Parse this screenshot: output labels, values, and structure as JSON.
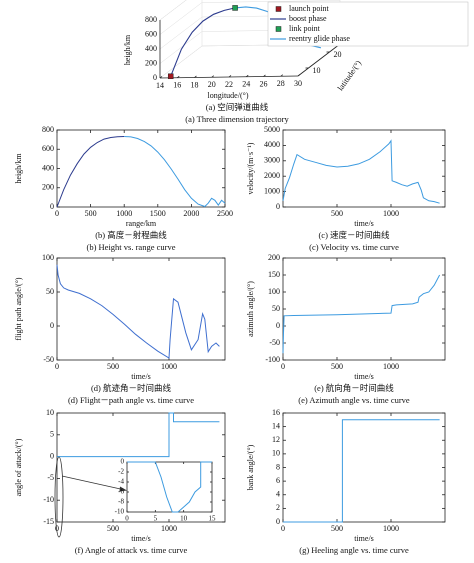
{
  "chart_data": [
    {
      "type": "line3d",
      "captions": [
        "(a) 空间弹道曲线",
        "(a) Three dimension trajectory"
      ],
      "xlabel": "longitude/(°)",
      "ylabel": "latitude/(°)",
      "zlabel": "heigh/km",
      "xlim": [
        14,
        30
      ],
      "xticks": [
        14,
        16,
        18,
        20,
        22,
        24,
        26,
        28,
        30
      ],
      "ylim": [
        5,
        25
      ],
      "yticks": [
        10,
        20
      ],
      "zlim": [
        0,
        800
      ],
      "zticks": [
        0,
        200,
        400,
        600,
        800
      ],
      "series": [
        {
          "name": "boost phase",
          "color": "#2c3b8e",
          "x": [
            15,
            16,
            17,
            18,
            19,
            20,
            21
          ],
          "y": [
            6,
            7,
            8,
            9,
            10,
            11,
            12
          ],
          "values": [
            0,
            350,
            560,
            690,
            760,
            790,
            800
          ]
        },
        {
          "name": "reentry glide phase",
          "color": "#3d9be0",
          "x": [
            21,
            22,
            23,
            24,
            25,
            26,
            27,
            28,
            29
          ],
          "y": [
            12,
            13,
            14,
            15,
            16,
            17,
            18,
            19,
            20
          ],
          "values": [
            800,
            790,
            750,
            680,
            580,
            450,
            300,
            120,
            60
          ]
        }
      ],
      "markers": [
        {
          "name": "launch point",
          "color": "#a01820",
          "x": 15,
          "y": 6,
          "value": 0
        },
        {
          "name": "link point",
          "color": "#1fa055",
          "x": 21,
          "y": 12,
          "value": 800
        }
      ],
      "legend_order": [
        "markers.0",
        "series.0",
        "markers.1",
        "series.1"
      ]
    },
    {
      "type": "line",
      "captions": [
        "(b) 高度－射程曲线",
        "(b) Height vs. range curve"
      ],
      "xlabel": "range/km",
      "ylabel": "heigh/km",
      "xlim": [
        0,
        2500
      ],
      "xticks": [
        0,
        500,
        1000,
        1500,
        2000,
        2500
      ],
      "ylim": [
        0,
        800
      ],
      "yticks": [
        0,
        200,
        400,
        600,
        800
      ],
      "series": [
        {
          "color": "#2c3b8e",
          "x": [
            0,
            100,
            200,
            300,
            400,
            500,
            600,
            700,
            800,
            900,
            1000
          ],
          "values": [
            0,
            180,
            330,
            450,
            550,
            620,
            670,
            705,
            722,
            730,
            732
          ]
        },
        {
          "color": "#3d9be0",
          "x": [
            1000,
            1100,
            1200,
            1300,
            1400,
            1500,
            1600,
            1700,
            1800,
            1900,
            2000,
            2100,
            2200,
            2250,
            2300,
            2350,
            2400,
            2450,
            2500
          ],
          "values": [
            732,
            728,
            712,
            680,
            635,
            570,
            490,
            395,
            290,
            180,
            90,
            30,
            5,
            40,
            90,
            70,
            20,
            70,
            40
          ]
        }
      ]
    },
    {
      "type": "line",
      "captions": [
        "(c) 速度－时间曲线",
        "(c) Velocity vs. time curve"
      ],
      "xlabel": "time/s",
      "ylabel": "velocity/(m·s⁻¹)",
      "xlim": [
        0,
        1500
      ],
      "xticks": [
        500,
        1000
      ],
      "ylim": [
        0,
        5000
      ],
      "yticks": [
        0,
        1000,
        2000,
        3000,
        4000,
        5000
      ],
      "series": [
        {
          "color": "#3d9be0",
          "x": [
            0,
            20,
            60,
            100,
            130,
            200,
            300,
            400,
            500,
            600,
            700,
            800,
            900,
            980,
            1000,
            1010,
            1050,
            1100,
            1150,
            1200,
            1250,
            1280,
            1300,
            1350,
            1400,
            1450
          ],
          "values": [
            400,
            1200,
            1900,
            2800,
            3400,
            3100,
            2900,
            2700,
            2600,
            2650,
            2800,
            3100,
            3600,
            4100,
            4300,
            1700,
            1600,
            1450,
            1350,
            1500,
            1600,
            1100,
            600,
            400,
            350,
            250
          ]
        }
      ]
    },
    {
      "type": "line",
      "captions": [
        "(d) 航迹角－时间曲线",
        "(d) Flight－path angle vs. time curve"
      ],
      "xlabel": "time/s",
      "ylabel": "flight path angle/(°)",
      "xlim": [
        0,
        1500
      ],
      "xticks": [
        0,
        500,
        1000
      ],
      "ylim": [
        -50,
        100
      ],
      "yticks": [
        -50,
        0,
        50,
        100
      ],
      "series": [
        {
          "color": "#3f6fcf",
          "x": [
            0,
            10,
            30,
            60,
            100,
            200,
            300,
            400,
            500,
            600,
            700,
            800,
            900,
            1000,
            1010,
            1040,
            1080,
            1150,
            1200,
            1260,
            1300,
            1320,
            1350,
            1380,
            1420,
            1450
          ],
          "values": [
            90,
            75,
            62,
            56,
            53,
            48,
            40,
            30,
            17,
            3,
            -12,
            -25,
            -37,
            -47,
            -20,
            40,
            35,
            -10,
            -35,
            -20,
            18,
            10,
            -38,
            -30,
            -25,
            -30
          ]
        }
      ]
    },
    {
      "type": "line",
      "captions": [
        "(e) 航向角－时间曲线",
        "(e) Azimuth angle vs. time curve"
      ],
      "xlabel": "time/s",
      "ylabel": "azimuth angle/(°)",
      "xlim": [
        0,
        1500
      ],
      "xticks": [
        0,
        500,
        1000
      ],
      "ylim": [
        -100,
        200
      ],
      "yticks": [
        -100,
        -50,
        0,
        50,
        100,
        150,
        200
      ],
      "series": [
        {
          "color": "#3d9be0",
          "x": [
            0,
            5,
            10,
            100,
            500,
            1000,
            1010,
            1050,
            1200,
            1250,
            1260,
            1300,
            1350,
            1400,
            1450
          ],
          "values": [
            -80,
            -20,
            30,
            31,
            33,
            38,
            60,
            62,
            65,
            70,
            85,
            95,
            100,
            120,
            150
          ]
        }
      ]
    },
    {
      "type": "line",
      "captions": [
        "(f) Angle of attack vs. time curve"
      ],
      "xlabel": "time/s",
      "ylabel": "angle of attack/(°)",
      "xlim": [
        0,
        1500
      ],
      "xticks": [
        0,
        500,
        1000
      ],
      "ylim": [
        -15,
        10
      ],
      "yticks": [
        -15,
        -10,
        -5,
        0,
        5,
        10
      ],
      "series": [
        {
          "color": "#3d9be0",
          "x": [
            0,
            1000,
            1000,
            1040,
            1040,
            1450
          ],
          "values": [
            0,
            0,
            10,
            10,
            8,
            8
          ]
        }
      ],
      "inset": {
        "xlim": [
          0,
          15
        ],
        "xticks": [
          0,
          5,
          10,
          15
        ],
        "ylim": [
          -10,
          0
        ],
        "yticks": [
          0,
          -2,
          -4,
          -6,
          -8,
          -10
        ],
        "series": [
          {
            "color": "#3d9be0",
            "x": [
              0,
              5,
              6,
              7,
              8,
              9,
              10,
              11,
              12,
              13,
              13,
              15
            ],
            "values": [
              0,
              0,
              -3,
              -7,
              -10,
              -10,
              -9,
              -8,
              -6,
              -5,
              0,
              0
            ]
          }
        ]
      }
    },
    {
      "type": "line",
      "captions": [
        "(g) Heeling angle vs. time curve"
      ],
      "xlabel": "time/s",
      "ylabel": "bank angle/(°)",
      "xlim": [
        0,
        1500
      ],
      "xticks": [
        0,
        500,
        1000
      ],
      "ylim": [
        0,
        16
      ],
      "yticks": [
        0,
        2,
        4,
        6,
        8,
        10,
        12,
        14,
        16
      ],
      "series": [
        {
          "color": "#3d9be0",
          "x": [
            0,
            550,
            550,
            1450
          ],
          "values": [
            0,
            0,
            15,
            15
          ]
        }
      ]
    }
  ]
}
